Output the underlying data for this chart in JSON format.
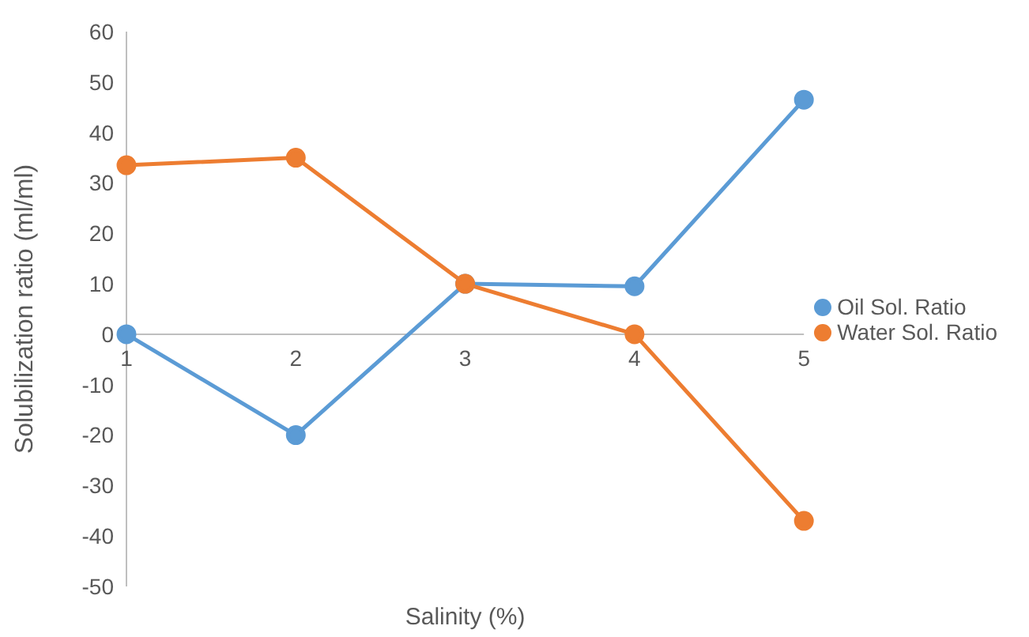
{
  "chart_data": {
    "type": "line",
    "xlabel": "Salinity (%)",
    "ylabel": "Solubilization ratio (ml/ml)",
    "categories": [
      "1",
      "2",
      "3",
      "4",
      "5"
    ],
    "series": [
      {
        "name": "Oil Sol. Ratio",
        "color": "#5b9bd5",
        "values": [
          0,
          -20,
          10,
          9.5,
          46.5
        ]
      },
      {
        "name": "Water Sol. Ratio",
        "color": "#ed7d31",
        "values": [
          33.5,
          35,
          10,
          0,
          -37
        ]
      }
    ],
    "ylim": [
      -50,
      60
    ],
    "yticks": [
      -50,
      -40,
      -30,
      -20,
      -10,
      0,
      10,
      20,
      30,
      40,
      50,
      60
    ],
    "legend": "right",
    "marker": "circle",
    "line_style": "solid"
  }
}
